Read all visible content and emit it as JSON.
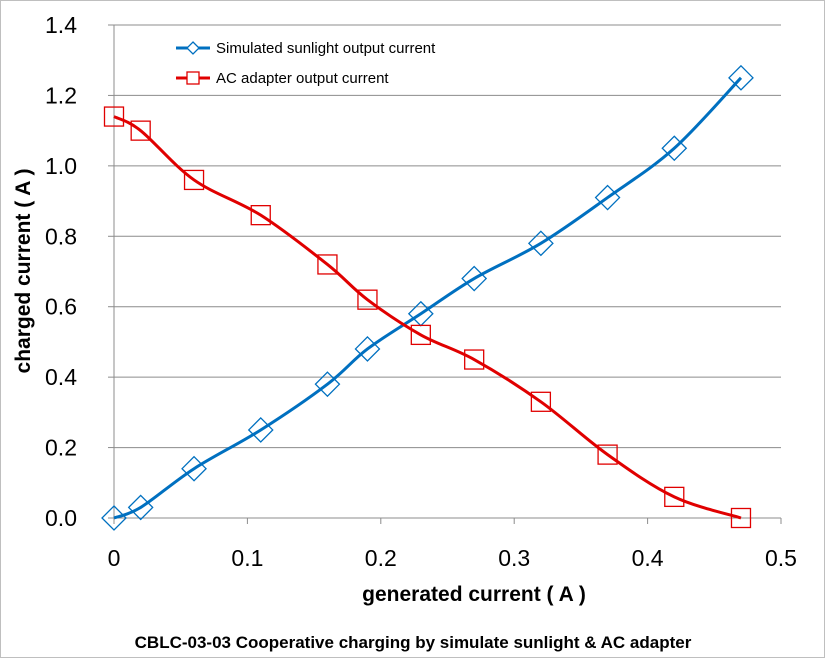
{
  "chart_data": {
    "type": "line",
    "title": "",
    "caption": "CBLC-03-03   Cooperative charging by simulate sunlight & AC adapter",
    "xlabel": "generated current ( A )",
    "ylabel": "charged current ( A )",
    "xlim": [
      0,
      0.5
    ],
    "ylim": [
      0,
      1.4
    ],
    "xticks": [
      0,
      0.1,
      0.2,
      0.3,
      0.4,
      0.5
    ],
    "xtick_labels": [
      "0",
      "0.1",
      "0.2",
      "0.3",
      "0.4",
      "0.5"
    ],
    "yticks": [
      0,
      0.2,
      0.4,
      0.6,
      0.8,
      1.0,
      1.2,
      1.4
    ],
    "ytick_labels": [
      "0.0",
      "0.2",
      "0.4",
      "0.6",
      "0.8",
      "1.0",
      "1.2",
      "1.4"
    ],
    "grid": "horizontal",
    "legend_position": "top-left",
    "series": [
      {
        "name": "Simulated sunlight output current",
        "color": "#0070c0",
        "marker": "diamond",
        "x": [
          0,
          0.02,
          0.06,
          0.11,
          0.16,
          0.19,
          0.23,
          0.27,
          0.32,
          0.37,
          0.42,
          0.47
        ],
        "y": [
          0,
          0.03,
          0.14,
          0.25,
          0.38,
          0.48,
          0.58,
          0.68,
          0.78,
          0.91,
          1.05,
          1.25
        ]
      },
      {
        "name": "AC adapter output current",
        "color": "#e00000",
        "marker": "square",
        "x": [
          0,
          0.02,
          0.06,
          0.11,
          0.16,
          0.19,
          0.23,
          0.27,
          0.32,
          0.37,
          0.42,
          0.47
        ],
        "y": [
          1.14,
          1.1,
          0.96,
          0.86,
          0.72,
          0.62,
          0.52,
          0.45,
          0.33,
          0.18,
          0.06,
          0.0
        ]
      }
    ]
  }
}
